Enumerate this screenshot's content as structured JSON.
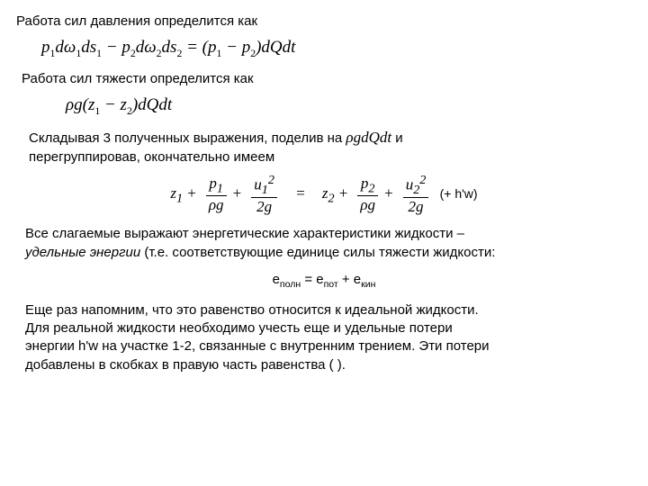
{
  "title1": "Работа сил давления определится как",
  "formula1_html": "p<sub>1</sub>dω<sub>1</sub>ds<sub>1</sub> − p<sub>2</sub>dω<sub>2</sub>ds<sub>2</sub> = (p<sub>1</sub> − p<sub>2</sub>)dQdt",
  "title2": "Работа сил тяжести определится как",
  "formula2_html": "ρg(z<sub>1</sub> − z<sub>2</sub>)dQdt",
  "para1_a": "Складывая 3 полученных выражения, поделив на ",
  "para1_inline": "ρgdQdt",
  "para1_b": "  и",
  "para1_c": "перегруппировав,  окончательно имеем",
  "eq_trailer": "(+ h'w)",
  "para2_a": "Все слагаемые выражают энергетические характеристики жидкости –",
  "para2_b_ital": "удельные энергии",
  "para2_b_rest": " (т.е. соответствующие единице силы тяжести жидкости:",
  "center_eq_html": "е<sub>полн</sub> =  е<sub>пот</sub> +  е<sub>кин</sub>",
  "para3_a": "Еще раз напомним, что это равенство относится к идеальной жидкости.",
  "para3_b": "Для реальной жидкости необходимо учесть еще и удельные потери",
  "para3_c": "энергии  h'w  на участке 1-2,  связанные с внутренним трением. Эти потери",
  "para3_d": "добавлены в скобках в правую часть равенства (  )."
}
